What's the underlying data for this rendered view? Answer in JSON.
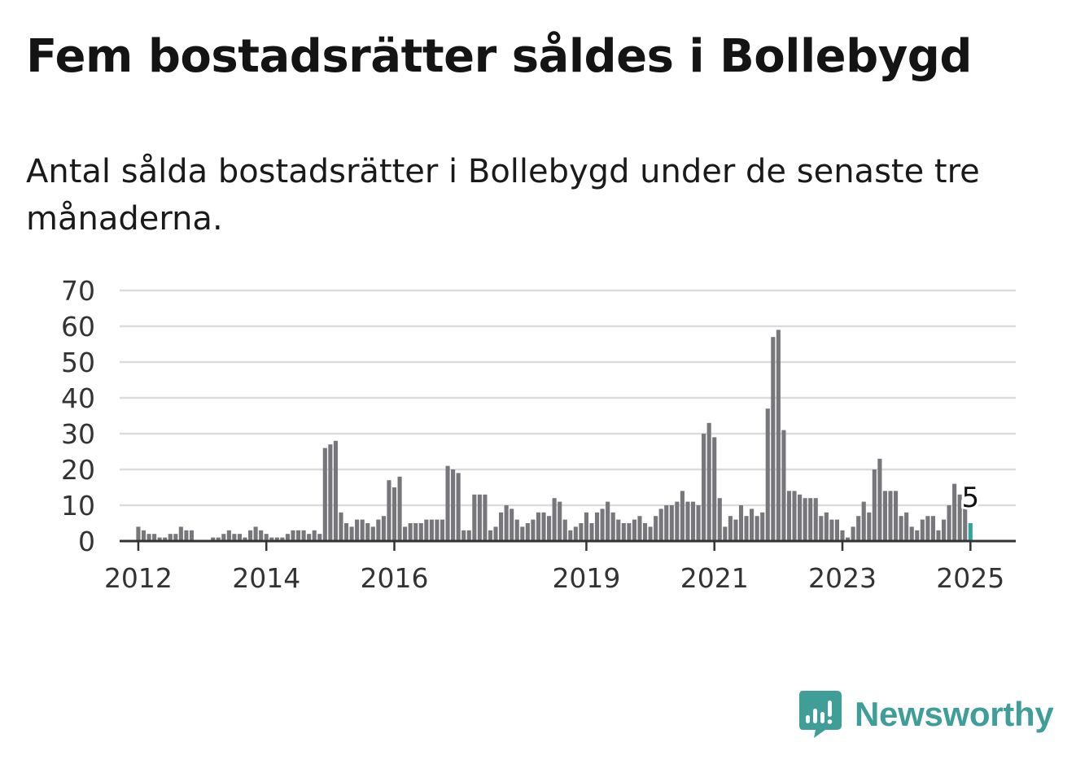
{
  "header": {
    "title": "Fem bostadsrätter såldes i Bollebygd",
    "subtitle": "Antal sålda bostadsrätter i Bollebygd under de senaste tre månaderna."
  },
  "brand": {
    "name": "Newsworthy",
    "color": "#3f9e98"
  },
  "chart_data": {
    "type": "bar",
    "title": "",
    "xlabel": "",
    "ylabel": "",
    "ylim": [
      0,
      70
    ],
    "yticks": [
      0,
      10,
      20,
      30,
      40,
      50,
      60,
      70
    ],
    "grid": true,
    "x_start": "2011-10",
    "x_end": "2025-09",
    "xticks": [
      {
        "label": "2012",
        "date": "2012-01"
      },
      {
        "label": "2014",
        "date": "2014-01"
      },
      {
        "label": "2016",
        "date": "2016-01"
      },
      {
        "label": "2019",
        "date": "2019-01"
      },
      {
        "label": "2021",
        "date": "2021-01"
      },
      {
        "label": "2023",
        "date": "2023-01"
      },
      {
        "label": "2025",
        "date": "2025-01"
      }
    ],
    "bar_color": "#76767b",
    "highlight_color": "#30a39b",
    "highlight_label": "5",
    "series": [
      {
        "points": [
          [
            "2012-01",
            4
          ],
          [
            "2012-02",
            3
          ],
          [
            "2012-03",
            2
          ],
          [
            "2012-04",
            2
          ],
          [
            "2012-05",
            1
          ],
          [
            "2012-06",
            1
          ],
          [
            "2012-07",
            2
          ],
          [
            "2012-08",
            2
          ],
          [
            "2012-09",
            4
          ],
          [
            "2012-10",
            3
          ],
          [
            "2012-11",
            3
          ],
          [
            "2012-12",
            0
          ],
          [
            "2013-01",
            0
          ],
          [
            "2013-02",
            0
          ],
          [
            "2013-03",
            1
          ],
          [
            "2013-04",
            1
          ],
          [
            "2013-05",
            2
          ],
          [
            "2013-06",
            3
          ],
          [
            "2013-07",
            2
          ],
          [
            "2013-08",
            2
          ],
          [
            "2013-09",
            1
          ],
          [
            "2013-10",
            3
          ],
          [
            "2013-11",
            4
          ],
          [
            "2013-12",
            3
          ],
          [
            "2014-01",
            2
          ],
          [
            "2014-02",
            1
          ],
          [
            "2014-03",
            1
          ],
          [
            "2014-04",
            1
          ],
          [
            "2014-05",
            2
          ],
          [
            "2014-06",
            3
          ],
          [
            "2014-07",
            3
          ],
          [
            "2014-08",
            3
          ],
          [
            "2014-09",
            2
          ],
          [
            "2014-10",
            3
          ],
          [
            "2014-11",
            2
          ],
          [
            "2014-12",
            26
          ],
          [
            "2015-01",
            27
          ],
          [
            "2015-02",
            28
          ],
          [
            "2015-03",
            8
          ],
          [
            "2015-04",
            5
          ],
          [
            "2015-05",
            4
          ],
          [
            "2015-06",
            6
          ],
          [
            "2015-07",
            6
          ],
          [
            "2015-08",
            5
          ],
          [
            "2015-09",
            4
          ],
          [
            "2015-10",
            6
          ],
          [
            "2015-11",
            7
          ],
          [
            "2015-12",
            17
          ],
          [
            "2016-01",
            15
          ],
          [
            "2016-02",
            18
          ],
          [
            "2016-03",
            4
          ],
          [
            "2016-04",
            5
          ],
          [
            "2016-05",
            5
          ],
          [
            "2016-06",
            5
          ],
          [
            "2016-07",
            6
          ],
          [
            "2016-08",
            6
          ],
          [
            "2016-09",
            6
          ],
          [
            "2016-10",
            6
          ],
          [
            "2016-11",
            21
          ],
          [
            "2016-12",
            20
          ],
          [
            "2017-01",
            19
          ],
          [
            "2017-02",
            3
          ],
          [
            "2017-03",
            3
          ],
          [
            "2017-04",
            13
          ],
          [
            "2017-05",
            13
          ],
          [
            "2017-06",
            13
          ],
          [
            "2017-07",
            3
          ],
          [
            "2017-08",
            4
          ],
          [
            "2017-09",
            8
          ],
          [
            "2017-10",
            10
          ],
          [
            "2017-11",
            9
          ],
          [
            "2017-12",
            6
          ],
          [
            "2018-01",
            4
          ],
          [
            "2018-02",
            5
          ],
          [
            "2018-03",
            6
          ],
          [
            "2018-04",
            8
          ],
          [
            "2018-05",
            8
          ],
          [
            "2018-06",
            7
          ],
          [
            "2018-07",
            12
          ],
          [
            "2018-08",
            11
          ],
          [
            "2018-09",
            6
          ],
          [
            "2018-10",
            3
          ],
          [
            "2018-11",
            4
          ],
          [
            "2018-12",
            5
          ],
          [
            "2019-01",
            8
          ],
          [
            "2019-02",
            5
          ],
          [
            "2019-03",
            8
          ],
          [
            "2019-04",
            9
          ],
          [
            "2019-05",
            11
          ],
          [
            "2019-06",
            8
          ],
          [
            "2019-07",
            6
          ],
          [
            "2019-08",
            5
          ],
          [
            "2019-09",
            5
          ],
          [
            "2019-10",
            6
          ],
          [
            "2019-11",
            7
          ],
          [
            "2019-12",
            5
          ],
          [
            "2020-01",
            4
          ],
          [
            "2020-02",
            7
          ],
          [
            "2020-03",
            9
          ],
          [
            "2020-04",
            10
          ],
          [
            "2020-05",
            10
          ],
          [
            "2020-06",
            11
          ],
          [
            "2020-07",
            14
          ],
          [
            "2020-08",
            11
          ],
          [
            "2020-09",
            11
          ],
          [
            "2020-10",
            10
          ],
          [
            "2020-11",
            30
          ],
          [
            "2020-12",
            33
          ],
          [
            "2021-01",
            29
          ],
          [
            "2021-02",
            12
          ],
          [
            "2021-03",
            4
          ],
          [
            "2021-04",
            7
          ],
          [
            "2021-05",
            6
          ],
          [
            "2021-06",
            10
          ],
          [
            "2021-07",
            7
          ],
          [
            "2021-08",
            9
          ],
          [
            "2021-09",
            7
          ],
          [
            "2021-10",
            8
          ],
          [
            "2021-11",
            37
          ],
          [
            "2021-12",
            57
          ],
          [
            "2022-01",
            59
          ],
          [
            "2022-02",
            31
          ],
          [
            "2022-03",
            14
          ],
          [
            "2022-04",
            14
          ],
          [
            "2022-05",
            13
          ],
          [
            "2022-06",
            12
          ],
          [
            "2022-07",
            12
          ],
          [
            "2022-08",
            12
          ],
          [
            "2022-09",
            7
          ],
          [
            "2022-10",
            8
          ],
          [
            "2022-11",
            6
          ],
          [
            "2022-12",
            6
          ],
          [
            "2023-01",
            3
          ],
          [
            "2023-02",
            1
          ],
          [
            "2023-03",
            4
          ],
          [
            "2023-04",
            7
          ],
          [
            "2023-05",
            11
          ],
          [
            "2023-06",
            8
          ],
          [
            "2023-07",
            20
          ],
          [
            "2023-08",
            23
          ],
          [
            "2023-09",
            14
          ],
          [
            "2023-10",
            14
          ],
          [
            "2023-11",
            14
          ],
          [
            "2023-12",
            7
          ],
          [
            "2024-01",
            8
          ],
          [
            "2024-02",
            4
          ],
          [
            "2024-03",
            3
          ],
          [
            "2024-04",
            6
          ],
          [
            "2024-05",
            7
          ],
          [
            "2024-06",
            7
          ],
          [
            "2024-07",
            3
          ],
          [
            "2024-08",
            6
          ],
          [
            "2024-09",
            10
          ],
          [
            "2024-10",
            16
          ],
          [
            "2024-11",
            13
          ],
          [
            "2024-12",
            9
          ],
          [
            "2025-01",
            5
          ]
        ]
      }
    ]
  }
}
